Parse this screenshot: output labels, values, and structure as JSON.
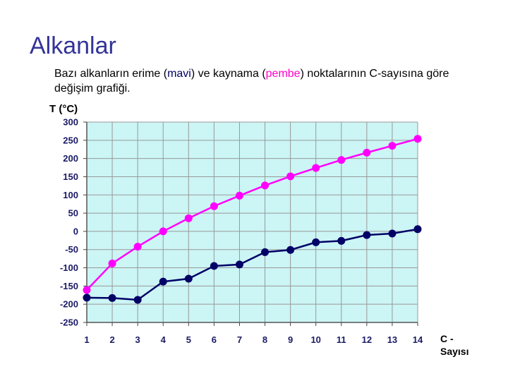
{
  "slide": {
    "title": "Alkanlar",
    "subtitle_parts": [
      "Bazı alkanların erime (",
      "mavi",
      ") ve kaynama (",
      "pembe",
      ") noktalarının C-sayısına göre değişim grafiği."
    ]
  },
  "colors": {
    "plot_background": "#ccf5f5",
    "melting": "#000066",
    "boiling": "#ff00ff",
    "grid": "#999999"
  },
  "chart_data": {
    "type": "line",
    "xlabel": "C - Sayısı",
    "ylabel": "T (°C)",
    "x": [
      1,
      2,
      3,
      4,
      5,
      6,
      7,
      8,
      9,
      10,
      11,
      12,
      13,
      14
    ],
    "ylim": [
      -250,
      300
    ],
    "yticks": [
      300,
      250,
      200,
      150,
      100,
      50,
      0,
      -50,
      -100,
      -150,
      -200,
      -250
    ],
    "grid": true,
    "series": [
      {
        "key": "melting",
        "values": [
          -182,
          -183,
          -188,
          -138,
          -130,
          -95,
          -91,
          -57,
          -51,
          -30,
          -26,
          -10,
          -6,
          6
        ]
      },
      {
        "key": "boiling",
        "values": [
          -161,
          -88,
          -42,
          0,
          36,
          69,
          98,
          126,
          151,
          174,
          196,
          216,
          235,
          254
        ]
      }
    ]
  }
}
